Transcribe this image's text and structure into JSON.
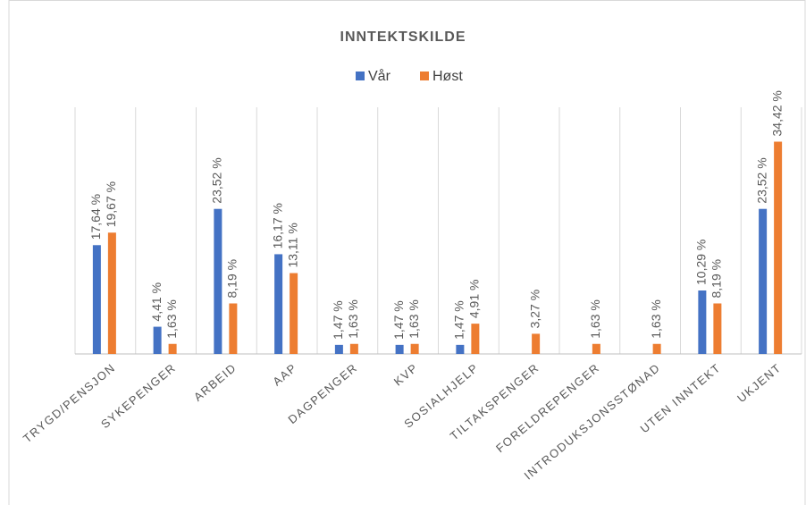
{
  "chart_data": {
    "type": "bar",
    "title": "INNTEKTSKILDE",
    "categories": [
      "TRYGD/PENSJON",
      "SYKEPENGER",
      "ARBEID",
      "AAP",
      "DAGPENGER",
      "KVP",
      "SOSIALHJELP",
      "TILTAKSPENGER",
      "FORELDREPENGER",
      "INTRODUKSJONSSTØNAD",
      "UTEN INNTEKT",
      "UKJENT"
    ],
    "series": [
      {
        "name": "Vår",
        "color": "#4472c4",
        "values": [
          17.64,
          4.41,
          23.52,
          16.17,
          1.47,
          1.47,
          1.47,
          null,
          null,
          null,
          10.29,
          23.52
        ],
        "value_labels": [
          "17,64 %",
          "4,41 %",
          "23,52 %",
          "16,17 %",
          "1,47 %",
          "1,47 %",
          "1,47 %",
          null,
          null,
          null,
          "10,29 %",
          "23,52 %"
        ]
      },
      {
        "name": "Høst",
        "color": "#ed7d31",
        "values": [
          19.67,
          1.63,
          8.19,
          13.11,
          1.63,
          1.63,
          4.91,
          3.27,
          1.63,
          1.63,
          8.19,
          34.42
        ],
        "value_labels": [
          "19,67 %",
          "1,63 %",
          "8,19 %",
          "13,11 %",
          "1,63 %",
          "1,63 %",
          "4,91 %",
          "3,27 %",
          "1,63 %",
          "1,63 %",
          "8,19 %",
          "34,42 %"
        ]
      }
    ],
    "ylim": [
      0,
      40
    ],
    "legend": "top"
  }
}
